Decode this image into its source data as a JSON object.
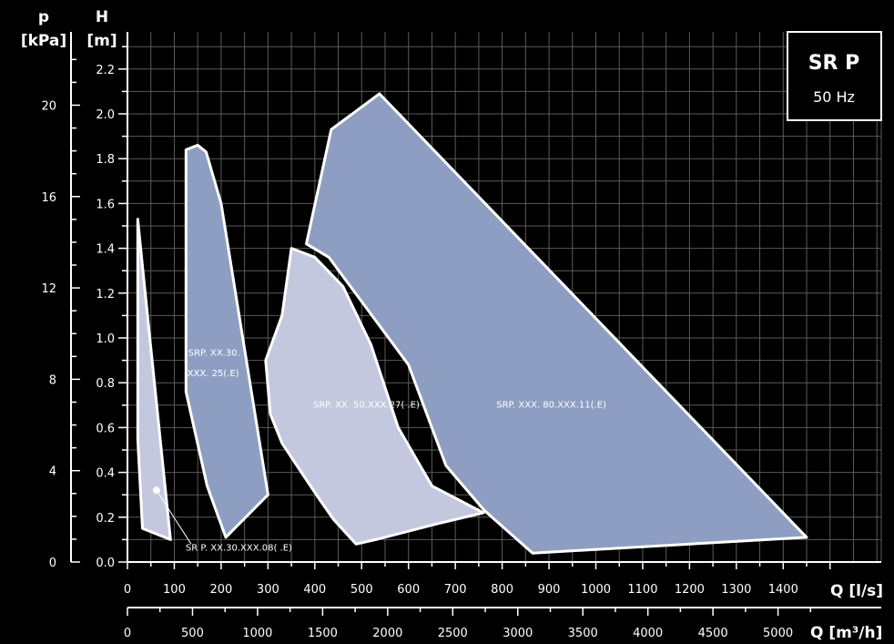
{
  "chart_data": {
    "type": "area",
    "title": "",
    "legend_box": {
      "title": "SR P",
      "subtitle": "50 Hz"
    },
    "axes": {
      "h": {
        "label": "H",
        "unit": "[m]",
        "range": [
          0,
          2.3
        ],
        "ticks": [
          "0.0",
          "0.2",
          "0.4",
          "0.6",
          "0.8",
          "1.0",
          "1.2",
          "1.4",
          "1.6",
          "1.8",
          "2.0",
          "2.2"
        ]
      },
      "p": {
        "label": "p",
        "unit": "[kPa]",
        "ticks": [
          "0",
          "4",
          "8",
          "12",
          "16",
          "20"
        ]
      },
      "q_ls": {
        "label": "Q",
        "unit": "[l/s]",
        "range": [
          0,
          1500
        ],
        "ticks": [
          "0",
          "100",
          "200",
          "300",
          "400",
          "500",
          "600",
          "700",
          "800",
          "900",
          "1000",
          "1100",
          "1200",
          "1300",
          "1400"
        ]
      },
      "q_m3h": {
        "label": "Q",
        "unit": "[m³/h]",
        "ticks": [
          "0",
          "500",
          "1000",
          "1500",
          "2000",
          "2500",
          "3000",
          "3500",
          "4000",
          "4500",
          "5000"
        ]
      }
    },
    "series": [
      {
        "name": "SRP. XXX. 80.XXX.11(.E)",
        "color": "#8e9ec2",
        "points": [
          [
            382,
            1.42
          ],
          [
            435,
            1.93
          ],
          [
            538,
            2.09
          ],
          [
            1450,
            0.11
          ],
          [
            865,
            0.04
          ],
          [
            762,
            0.23
          ],
          [
            680,
            0.43
          ],
          [
            600,
            0.88
          ],
          [
            430,
            1.36
          ],
          [
            382,
            1.42
          ]
        ]
      },
      {
        "name": "SRP. XX.30. XXX. 25(.E)",
        "color": "#8e9ec2",
        "points": [
          [
            125,
            1.84
          ],
          [
            150,
            1.86
          ],
          [
            168,
            1.83
          ],
          [
            200,
            1.6
          ],
          [
            300,
            0.3
          ],
          [
            210,
            0.11
          ],
          [
            170,
            0.34
          ],
          [
            125,
            0.76
          ]
        ]
      },
      {
        "name": "SRP. XX. 50.XXX.27( .E)",
        "color": "#c3c8df",
        "points": [
          [
            350,
            1.4
          ],
          [
            400,
            1.36
          ],
          [
            460,
            1.23
          ],
          [
            520,
            0.97
          ],
          [
            578,
            0.6
          ],
          [
            650,
            0.34
          ],
          [
            760,
            0.22
          ],
          [
            660,
            0.17
          ],
          [
            530,
            0.1
          ],
          [
            488,
            0.08
          ],
          [
            440,
            0.19
          ],
          [
            410,
            0.28
          ],
          [
            384,
            0.36
          ],
          [
            330,
            0.53
          ],
          [
            305,
            0.66
          ],
          [
            295,
            0.9
          ],
          [
            330,
            1.1
          ]
        ]
      },
      {
        "name": "SR P. XX.30.XXX.08( .E)",
        "color": "#c3c8df",
        "points": [
          [
            22,
            1.53
          ],
          [
            32,
            1.32
          ],
          [
            92,
            0.1
          ],
          [
            32,
            0.15
          ],
          [
            22,
            0.55
          ]
        ]
      }
    ],
    "labels": [
      {
        "text": "SRP. XX.30.",
        "q": 185,
        "h": 0.92
      },
      {
        "text": "XXX. 25(.E)",
        "q": 183,
        "h": 0.83
      },
      {
        "text": "SRP. XX. 50.XXX.27( .E)",
        "q": 510,
        "h": 0.69
      },
      {
        "text": "SRP. XXX. 80.XXX.11(.E)",
        "q": 905,
        "h": 0.69
      },
      {
        "text": "SR P. XX.30.XXX.08( .E)",
        "q": 238,
        "h": 0.05
      }
    ],
    "grid": true
  }
}
